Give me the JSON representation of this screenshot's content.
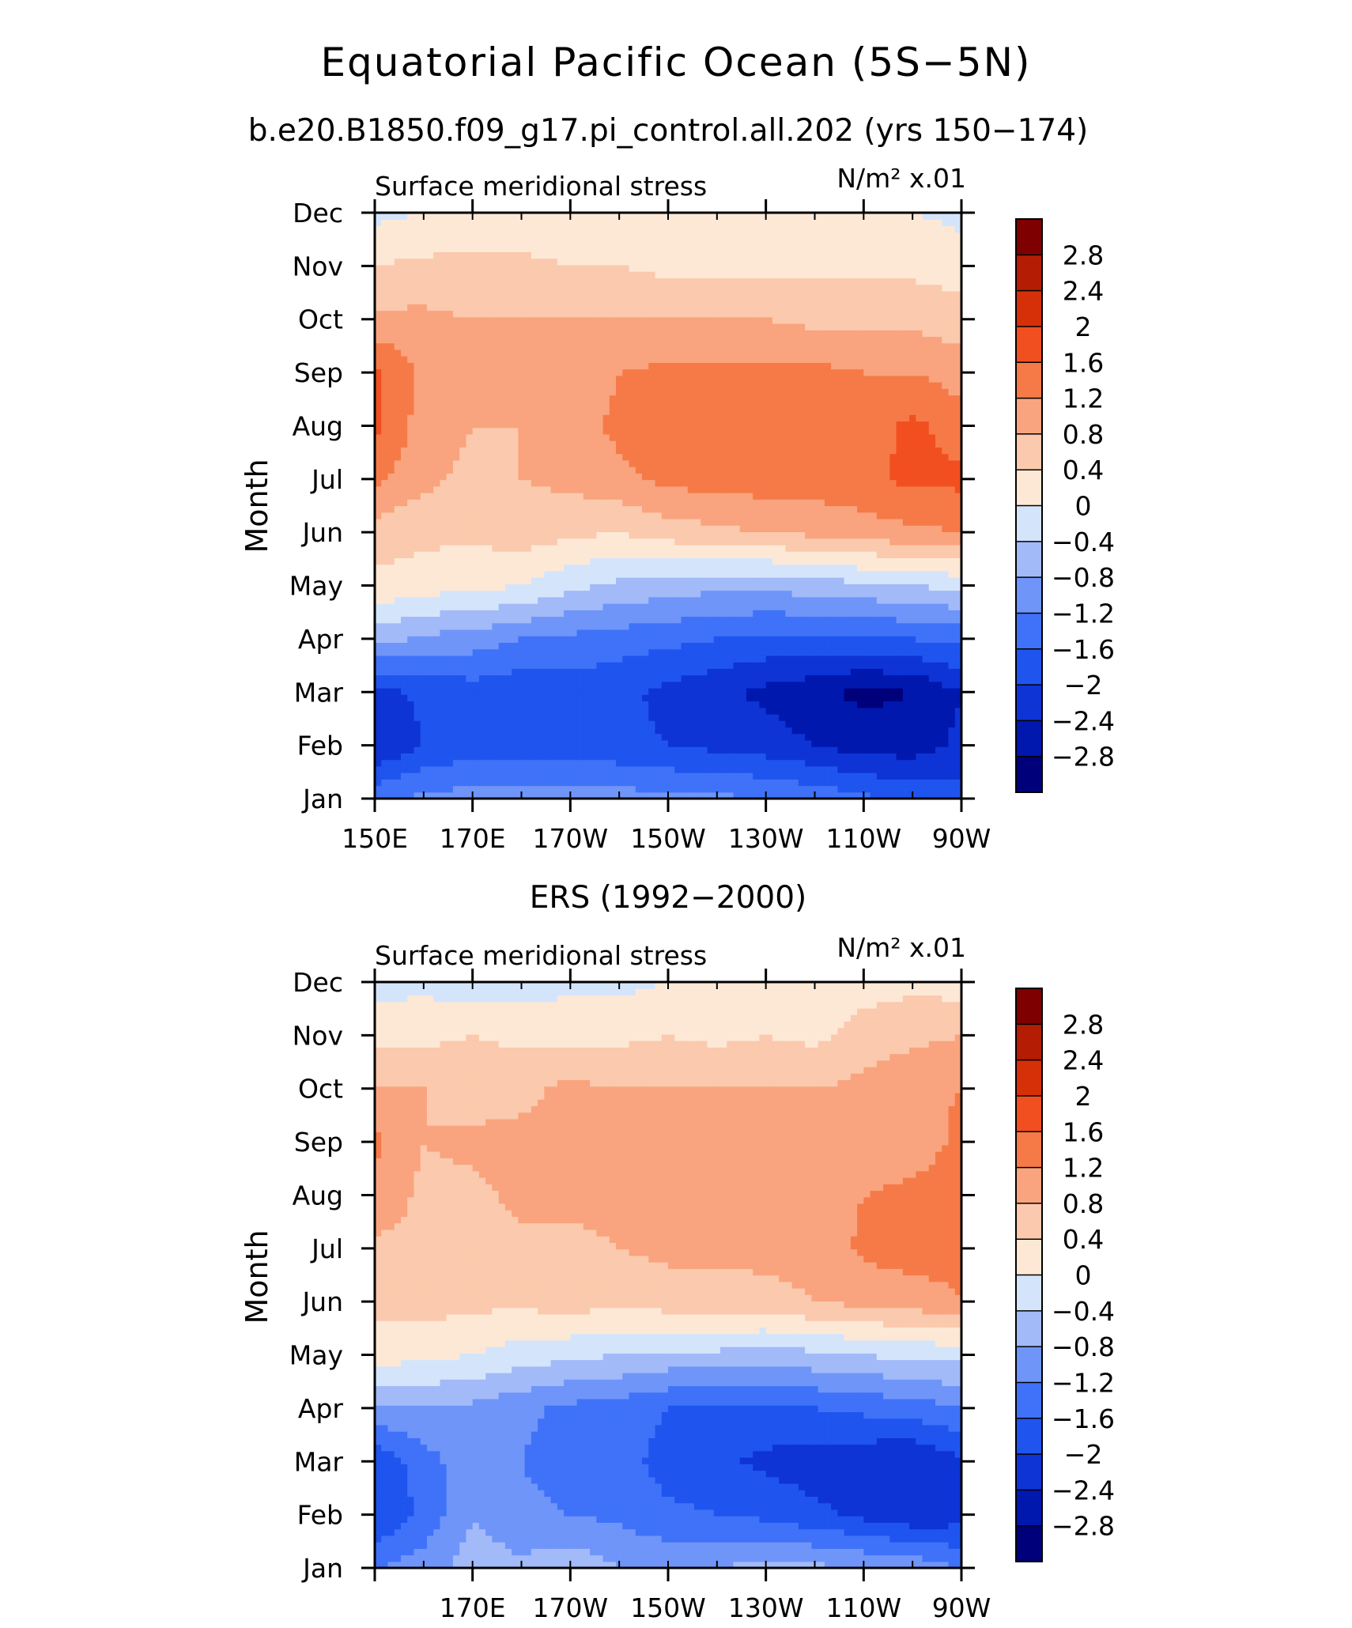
{
  "figure": {
    "title": "Equatorial Pacific Ocean (5S−5N)",
    "subtitle": "b.e20.B1850.f09_g17.pi_control.all.202 (yrs 150−174)"
  },
  "chart_data": [
    {
      "type": "heatmap",
      "title": "",
      "left_label": "Surface meridional stress",
      "right_label": "N/m² x.01",
      "xlabel": "",
      "ylabel": "Month",
      "x_range": [
        150,
        270
      ],
      "x_ticks": [
        {
          "value": 150,
          "label": "150E"
        },
        {
          "value": 170,
          "label": "170E"
        },
        {
          "value": 190,
          "label": "170W"
        },
        {
          "value": 210,
          "label": "150W"
        },
        {
          "value": 230,
          "label": "130W"
        },
        {
          "value": 250,
          "label": "110W"
        },
        {
          "value": 270,
          "label": "90W"
        }
      ],
      "months": [
        "Jan",
        "Feb",
        "Mar",
        "Apr",
        "May",
        "Jun",
        "Jul",
        "Aug",
        "Sep",
        "Oct",
        "Nov",
        "Dec"
      ],
      "lon": [
        150,
        160,
        170,
        180,
        190,
        200,
        210,
        220,
        230,
        240,
        250,
        260,
        270
      ],
      "z": [
        [
          -1.3,
          -1.1,
          -1.0,
          -1.0,
          -1.0,
          -1.0,
          -1.1,
          -1.1,
          -1.2,
          -1.3,
          -1.5,
          -1.7,
          -1.8
        ],
        [
          -2.4,
          -2.0,
          -1.8,
          -1.8,
          -1.8,
          -1.9,
          -2.0,
          -2.1,
          -2.2,
          -2.4,
          -2.6,
          -2.6,
          -2.3
        ],
        [
          -2.2,
          -1.9,
          -1.8,
          -1.9,
          -1.8,
          -1.9,
          -2.1,
          -2.3,
          -2.5,
          -2.7,
          -2.9,
          -2.8,
          -2.4
        ],
        [
          -0.6,
          -0.9,
          -1.0,
          -1.2,
          -1.3,
          -1.4,
          -1.5,
          -1.6,
          -1.7,
          -1.7,
          -1.7,
          -1.6,
          -1.5
        ],
        [
          0.3,
          0.2,
          0.1,
          0.0,
          -0.3,
          -0.5,
          -0.6,
          -0.7,
          -0.7,
          -0.6,
          -0.5,
          -0.4,
          -0.3
        ],
        [
          0.6,
          0.5,
          0.5,
          0.6,
          0.5,
          0.4,
          0.6,
          0.7,
          0.8,
          0.9,
          1.0,
          1.1,
          1.2
        ],
        [
          1.3,
          0.9,
          0.7,
          0.8,
          0.9,
          1.1,
          1.3,
          1.4,
          1.4,
          1.4,
          1.5,
          1.7,
          1.7
        ],
        [
          1.7,
          1.0,
          0.8,
          0.8,
          1.0,
          1.3,
          1.4,
          1.4,
          1.4,
          1.4,
          1.4,
          1.7,
          1.4
        ],
        [
          1.7,
          1.1,
          0.9,
          0.8,
          0.9,
          1.2,
          1.3,
          1.3,
          1.3,
          1.3,
          1.2,
          1.2,
          1.0
        ],
        [
          0.9,
          0.9,
          0.8,
          0.8,
          0.8,
          0.8,
          0.8,
          0.8,
          0.8,
          0.7,
          0.7,
          0.7,
          0.6
        ],
        [
          0.4,
          0.5,
          0.5,
          0.5,
          0.4,
          0.4,
          0.3,
          0.3,
          0.3,
          0.3,
          0.3,
          0.3,
          0.2
        ],
        [
          -0.1,
          0.0,
          0.1,
          0.1,
          0.1,
          0.1,
          0.1,
          0.1,
          0.1,
          0.1,
          0.1,
          0.0,
          -0.1
        ]
      ]
    },
    {
      "type": "heatmap",
      "title": "ERS (1992−2000)",
      "left_label": "Surface meridional stress",
      "right_label": "N/m² x.01",
      "xlabel": "",
      "ylabel": "Month",
      "x_range": [
        150,
        270
      ],
      "x_ticks": [
        {
          "value": 170,
          "label": "170E"
        },
        {
          "value": 190,
          "label": "170W"
        },
        {
          "value": 210,
          "label": "150W"
        },
        {
          "value": 230,
          "label": "130W"
        },
        {
          "value": 250,
          "label": "110W"
        },
        {
          "value": 270,
          "label": "90W"
        }
      ],
      "months": [
        "Jan",
        "Feb",
        "Mar",
        "Apr",
        "May",
        "Jun",
        "Jul",
        "Aug",
        "Sep",
        "Oct",
        "Nov",
        "Dec"
      ],
      "lon": [
        150,
        160,
        170,
        180,
        190,
        200,
        210,
        220,
        230,
        240,
        250,
        260,
        270
      ],
      "z": [
        [
          -1.2,
          -1.0,
          -0.6,
          -0.7,
          -0.5,
          -0.8,
          -0.9,
          -0.8,
          -0.6,
          -0.7,
          -0.8,
          -0.9,
          -1.2
        ],
        [
          -2.0,
          -1.5,
          -0.8,
          -1.1,
          -1.2,
          -1.3,
          -1.5,
          -1.6,
          -1.7,
          -1.9,
          -2.1,
          -2.3,
          -2.2
        ],
        [
          -1.9,
          -1.4,
          -0.9,
          -1.2,
          -1.4,
          -1.4,
          -1.8,
          -1.9,
          -2.1,
          -2.2,
          -2.3,
          -2.4,
          -2.1
        ],
        [
          -0.9,
          -0.8,
          -0.9,
          -1.1,
          -1.3,
          -1.4,
          -1.6,
          -1.7,
          -1.7,
          -1.6,
          -1.5,
          -1.4,
          -1.2
        ],
        [
          0.2,
          0.1,
          0.0,
          -0.2,
          -0.3,
          -0.4,
          -0.5,
          -0.5,
          -0.6,
          -0.5,
          -0.4,
          -0.3,
          -0.3
        ],
        [
          0.5,
          0.6,
          0.5,
          0.5,
          0.6,
          0.5,
          0.6,
          0.6,
          0.7,
          0.8,
          0.9,
          1.0,
          1.2
        ],
        [
          0.7,
          0.7,
          0.6,
          0.7,
          0.7,
          0.8,
          0.9,
          0.9,
          0.9,
          0.9,
          1.3,
          1.4,
          1.3
        ],
        [
          1.1,
          0.7,
          0.7,
          0.9,
          0.9,
          0.9,
          1.0,
          1.0,
          0.9,
          0.9,
          1.2,
          1.3,
          1.4
        ],
        [
          1.3,
          0.8,
          0.9,
          0.9,
          0.9,
          0.9,
          1.0,
          0.9,
          0.9,
          1.0,
          0.9,
          1.0,
          1.3
        ],
        [
          0.8,
          0.8,
          0.6,
          0.7,
          0.9,
          0.8,
          0.8,
          0.8,
          0.8,
          0.8,
          0.9,
          1.1,
          1.2
        ],
        [
          0.3,
          0.3,
          0.4,
          0.3,
          0.3,
          0.3,
          0.4,
          0.3,
          0.4,
          0.3,
          0.6,
          0.7,
          0.8
        ],
        [
          -0.2,
          -0.1,
          -0.3,
          -0.2,
          -0.1,
          -0.1,
          0.0,
          0.1,
          0.1,
          0.1,
          0.2,
          0.3,
          0.2
        ]
      ]
    }
  ],
  "colorbar": {
    "levels": [
      -2.8,
      -2.4,
      -2,
      -1.6,
      -1.2,
      -0.8,
      -0.4,
      0,
      0.4,
      0.8,
      1.2,
      1.6,
      2,
      2.4,
      2.8
    ],
    "labels": [
      "−2.8",
      "−2.4",
      "−2",
      "−1.6",
      "−1.2",
      "−0.8",
      "−0.4",
      "0",
      "0.4",
      "0.8",
      "1.2",
      "1.6",
      "2",
      "2.4",
      "2.8"
    ],
    "colors": [
      "#00007b",
      "#0018ae",
      "#0e34d6",
      "#1f55ee",
      "#3f72f8",
      "#6f95f9",
      "#a2baf8",
      "#d4e5fb",
      "#fde8d6",
      "#fbc9ad",
      "#f9a47e",
      "#f67a48",
      "#f24f20",
      "#d63009",
      "#b41d03",
      "#7f0000"
    ]
  }
}
